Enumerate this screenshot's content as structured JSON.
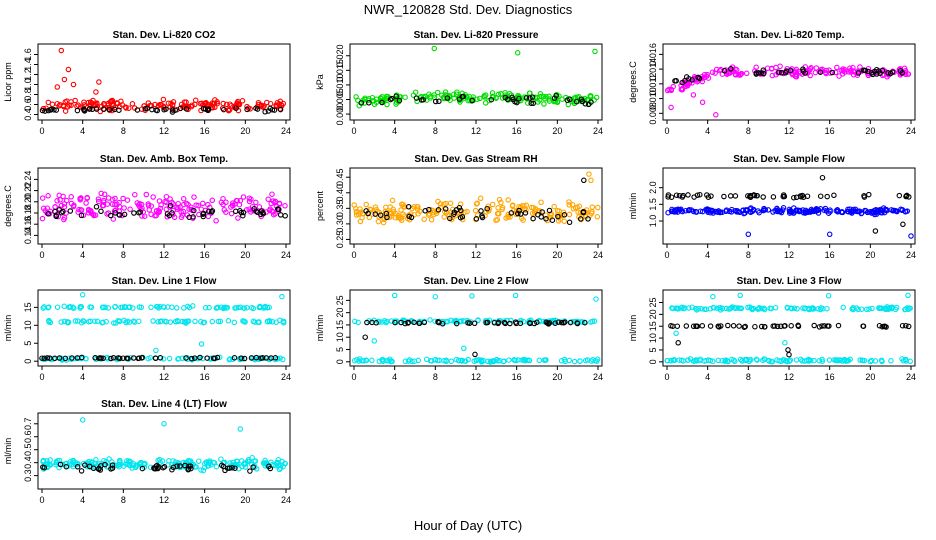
{
  "figure": {
    "title": "NWR_120828  Std. Dev. Diagnostics",
    "xlabel": "Hour of Day (UTC)"
  },
  "colors": {
    "co2": "#ff0000",
    "pressure": "#00dd00",
    "temp": "#ff00ff",
    "rh": "#ffa500",
    "sample_flow": "#0000ff",
    "line_flow": "#00e5ee",
    "black": "#000000"
  },
  "chart_data": [
    {
      "type": "scatter",
      "title": "Stan. Dev. Li-820 CO2",
      "ylabel": "Licor ppm",
      "xlim": [
        0,
        24
      ],
      "ylim": [
        0.35,
        1.75
      ],
      "xticks": [
        "0",
        "4",
        "8",
        "12",
        "16",
        "20",
        "24"
      ],
      "yticks": [
        "0.4",
        "0.6",
        "0.8",
        "1.0",
        "1.2",
        "1.4",
        "1.6"
      ],
      "series": [
        {
          "color": "#ff0000",
          "base": 0.58,
          "spread": 0.15,
          "count": 170,
          "x": [
            1.9,
            2.6,
            5.6,
            3.1,
            1.5,
            2.2,
            5.3
          ],
          "y": [
            1.68,
            1.3,
            1.05,
            1.0,
            0.95,
            1.1,
            0.85
          ]
        },
        {
          "color": "#000000",
          "base": 0.5,
          "spread": 0.06,
          "count": 48
        }
      ]
    },
    {
      "type": "scatter",
      "title": "Stan. Dev. Li-820 Pressure",
      "ylabel": "kPa",
      "xlim": [
        0,
        24
      ],
      "ylim": [
        -0.001,
        0.023
      ],
      "xticks": [
        "0",
        "4",
        "8",
        "12",
        "16",
        "20",
        "24"
      ],
      "yticks": [
        "0.000",
        "0.005",
        "0.010",
        "0.015",
        "0.020"
      ],
      "series": [
        {
          "color": "#00dd00",
          "base": 0.0045,
          "spread": 0.0025,
          "count": 180,
          "x": [
            7.9,
            16.1,
            23.7
          ],
          "y": [
            0.0225,
            0.021,
            0.0215
          ],
          "arch": 0.0015
        },
        {
          "color": "#000000",
          "base": 0.004,
          "spread": 0.002,
          "count": 40,
          "arch": 0.0015
        }
      ]
    },
    {
      "type": "scatter",
      "title": "Stan. Dev. Li-820 Temp.",
      "ylabel": "degrees.C",
      "xlim": [
        0,
        24
      ],
      "ylim": [
        0.0075,
        0.017
      ],
      "xticks": [
        "0",
        "4",
        "8",
        "12",
        "16",
        "20",
        "24"
      ],
      "yticks": [
        "0.008",
        "0.010",
        "0.012",
        "0.014",
        "0.016"
      ],
      "series": [
        {
          "color": "#ff00ff",
          "base": 0.0136,
          "spread": 0.0009,
          "count": 180,
          "x": [
            4.8,
            0.4,
            3.5,
            2.6,
            1.5
          ],
          "y": [
            0.0078,
            0.0088,
            0.0095,
            0.0105,
            0.0112
          ],
          "ramp": true
        },
        {
          "color": "#000000",
          "base": 0.0136,
          "spread": 0.0006,
          "count": 45,
          "ramp": true
        }
      ]
    },
    {
      "type": "scatter",
      "title": "Stan. Dev. Amb. Box Temp.",
      "ylabel": "degrees.C",
      "xlim": [
        0,
        24
      ],
      "ylim": [
        0.13,
        0.255
      ],
      "xticks": [
        "0",
        "4",
        "8",
        "12",
        "16",
        "20",
        "24"
      ],
      "yticks": [
        "0.14",
        "0.16",
        "0.18",
        "0.20",
        "0.22",
        "0.24"
      ],
      "series": [
        {
          "color": "#ff00ff",
          "base": 0.19,
          "spread": 0.035,
          "count": 200
        },
        {
          "color": "#000000",
          "base": 0.18,
          "spread": 0.015,
          "count": 48
        }
      ]
    },
    {
      "type": "scatter",
      "title": "Stan. Dev. Gas Stream RH",
      "ylabel": "percent",
      "xlim": [
        0,
        24
      ],
      "ylim": [
        0.245,
        0.47
      ],
      "xticks": [
        "0",
        "4",
        "8",
        "12",
        "16",
        "20",
        "24"
      ],
      "yticks": [
        "0.25",
        "0.30",
        "0.35",
        "0.40",
        "0.45"
      ],
      "series": [
        {
          "color": "#ffa500",
          "base": 0.34,
          "spread": 0.05,
          "count": 200,
          "x": [
            23.1,
            23.3
          ],
          "y": [
            0.46,
            0.44
          ]
        },
        {
          "color": "#000000",
          "base": 0.33,
          "spread": 0.035,
          "count": 45,
          "x": [
            22.6
          ],
          "y": [
            0.44
          ]
        }
      ]
    },
    {
      "type": "scatter",
      "title": "Stan. Dev. Sample Flow",
      "ylabel": "ml/min",
      "xlim": [
        0,
        24
      ],
      "ylim": [
        0.4,
        2.5
      ],
      "xticks": [
        "0",
        "4",
        "8",
        "12",
        "16",
        "20",
        "24"
      ],
      "yticks": [
        "1.0",
        "1.5",
        "2.0"
      ],
      "series": [
        {
          "color": "#0000ff",
          "base": 1.3,
          "spread": 0.12,
          "count": 200,
          "x": [
            8.0,
            16.0,
            24.0
          ],
          "y": [
            0.6,
            0.6,
            0.55
          ]
        },
        {
          "color": "#000000",
          "base": 1.75,
          "spread": 0.08,
          "count": 48,
          "x": [
            20.5,
            23.2,
            15.3
          ],
          "y": [
            0.7,
            0.9,
            2.3
          ]
        }
      ]
    },
    {
      "type": "scatter",
      "title": "Stan. Dev. Line 1 Flow",
      "ylabel": "ml/min",
      "xlim": [
        0,
        24
      ],
      "ylim": [
        -0.5,
        19
      ],
      "xticks": [
        "0",
        "4",
        "8",
        "12",
        "16",
        "20",
        "24"
      ],
      "yticks": [
        "0",
        "5",
        "10",
        "15"
      ],
      "series": [
        {
          "color": "#00e5ee",
          "bands": [
            15.0,
            11.0,
            0.7
          ],
          "spread": 0.5,
          "count": 230,
          "x": [
            4.0,
            11.2,
            15.7,
            23.6
          ],
          "y": [
            18.5,
            3.0,
            4.8,
            18.0
          ]
        },
        {
          "color": "#000000",
          "bands": [
            0.9
          ],
          "spread": 0.2,
          "count": 48
        }
      ]
    },
    {
      "type": "scatter",
      "title": "Stan. Dev. Line 2 Flow",
      "ylabel": "ml/min",
      "xlim": [
        0,
        24
      ],
      "ylim": [
        -0.5,
        28
      ],
      "xticks": [
        "0",
        "4",
        "8",
        "12",
        "16",
        "20",
        "24"
      ],
      "yticks": [
        "0",
        "5",
        "10",
        "15",
        "20",
        "25"
      ],
      "series": [
        {
          "color": "#00e5ee",
          "bands": [
            16.5,
            0.5
          ],
          "spread": 0.8,
          "count": 200,
          "x": [
            4.0,
            8.0,
            11.6,
            15.9,
            23.8,
            2.0,
            10.8
          ],
          "y": [
            27.0,
            26.5,
            26.8,
            27.0,
            25.5,
            8.5,
            5.5
          ]
        },
        {
          "color": "#000000",
          "bands": [
            15.8
          ],
          "spread": 0.6,
          "count": 48,
          "x": [
            1.1,
            11.9
          ],
          "y": [
            10.0,
            3.0
          ]
        }
      ]
    },
    {
      "type": "scatter",
      "title": "Stan. Dev. Line 3 Flow",
      "ylabel": "ml/min",
      "xlim": [
        0,
        24
      ],
      "ylim": [
        -0.5,
        29
      ],
      "xticks": [
        "0",
        "4",
        "8",
        "12",
        "16",
        "20",
        "24"
      ],
      "yticks": [
        "0",
        "5",
        "10",
        "15",
        "20",
        "25"
      ],
      "series": [
        {
          "color": "#00e5ee",
          "bands": [
            22.5,
            0.6
          ],
          "spread": 0.8,
          "count": 220,
          "x": [
            4.5,
            7.2,
            15.9,
            23.7,
            0.9,
            11.6
          ],
          "y": [
            27.5,
            28.0,
            27.8,
            28.0,
            12.0,
            8.0
          ]
        },
        {
          "color": "#000000",
          "bands": [
            15.0
          ],
          "spread": 0.6,
          "count": 48,
          "x": [
            1.1,
            12.0,
            11.9
          ],
          "y": [
            8.0,
            3.0,
            5.0
          ]
        }
      ]
    },
    {
      "type": "scatter",
      "title": "Stan. Dev. Line 4 (LT) Flow",
      "ylabel": "ml/min",
      "xlim": [
        0,
        24
      ],
      "ylim": [
        0.22,
        0.76
      ],
      "xticks": [
        "0",
        "4",
        "8",
        "12",
        "16",
        "20",
        "24"
      ],
      "yticks": [
        "0.3",
        "0.4",
        "0.5",
        "0.6",
        "0.7"
      ],
      "series": [
        {
          "color": "#00e5ee",
          "base": 0.39,
          "spread": 0.06,
          "count": 210,
          "x": [
            4.0,
            12.0,
            19.5
          ],
          "y": [
            0.73,
            0.7,
            0.66
          ]
        },
        {
          "color": "#000000",
          "base": 0.36,
          "spread": 0.04,
          "count": 48
        }
      ]
    }
  ]
}
